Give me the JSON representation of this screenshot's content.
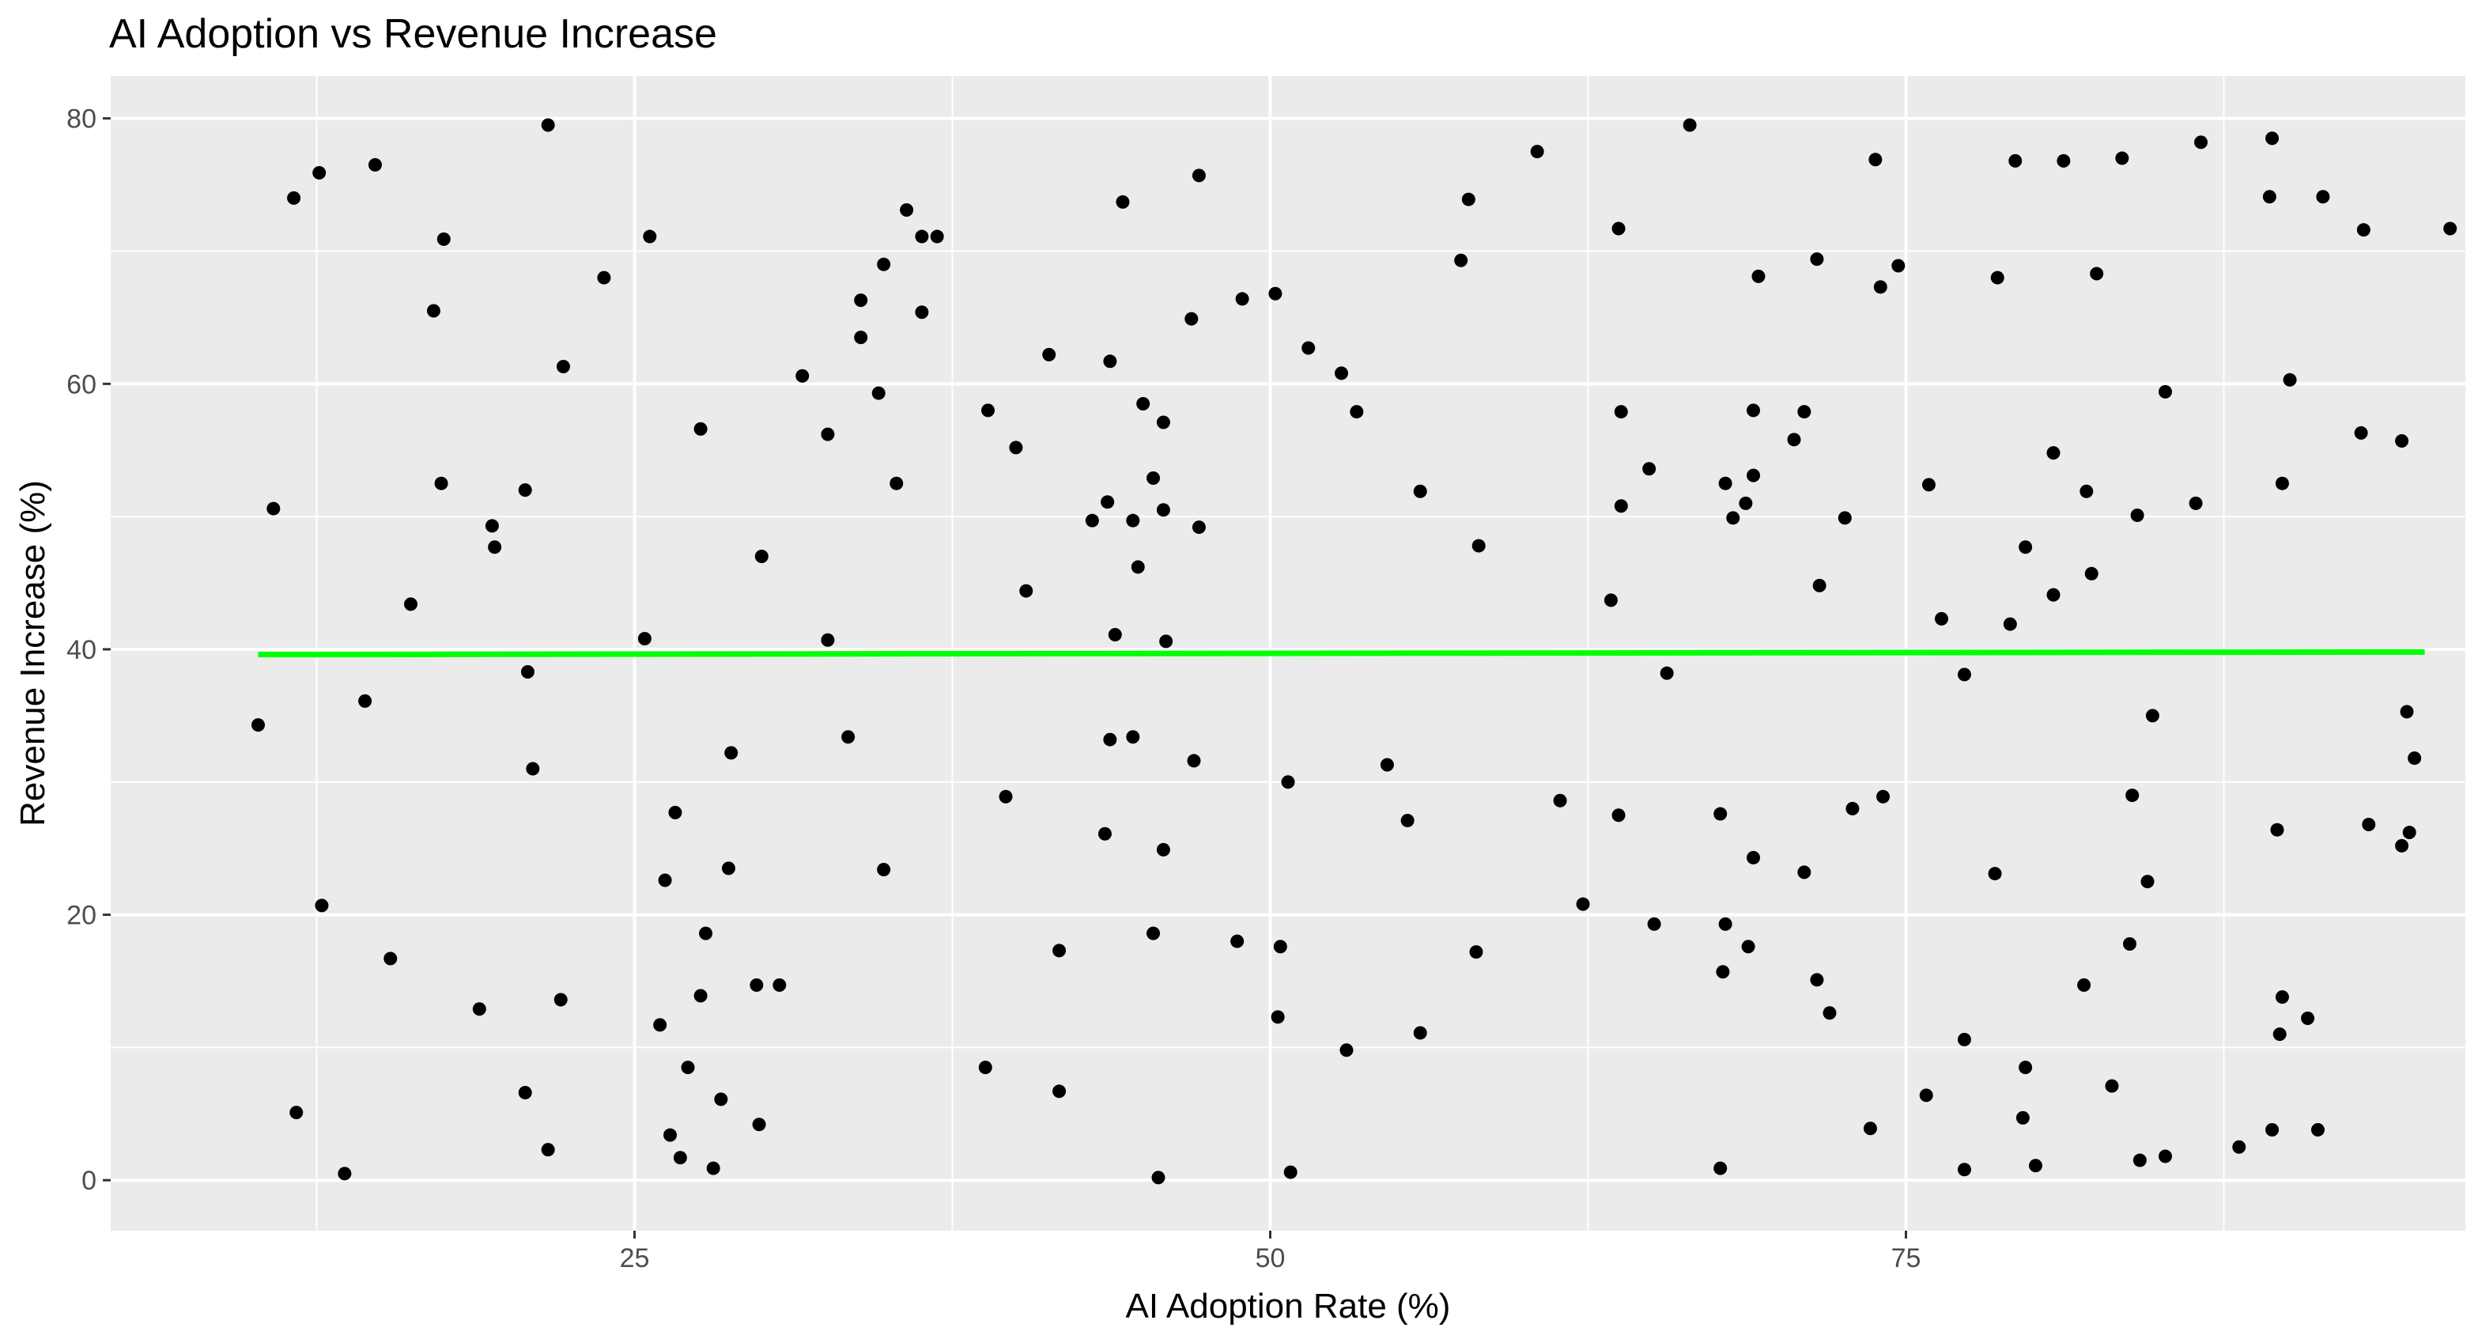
{
  "chart_data": {
    "type": "scatter",
    "title": "AI Adoption vs Revenue Increase",
    "xlabel": "AI Adoption Rate (%)",
    "ylabel": "Revenue Increase (%)",
    "xlim": [
      4.4,
      97.0
    ],
    "ylim": [
      -3.8,
      83.2
    ],
    "x_ticks": [
      25,
      50,
      75
    ],
    "y_ticks": [
      0,
      20,
      40,
      60,
      80
    ],
    "grid": true,
    "colors": {
      "panel": "#ebebeb",
      "grid": "#ffffff",
      "points": "#000000",
      "trend": "#00ff00"
    },
    "trend_line": {
      "x": [
        10.2,
        95.4
      ],
      "y": [
        39.6,
        39.8
      ]
    },
    "points": [
      [
        10.2,
        34.3
      ],
      [
        10.8,
        50.6
      ],
      [
        11.6,
        74.0
      ],
      [
        11.7,
        5.1
      ],
      [
        12.6,
        75.9
      ],
      [
        12.7,
        20.7
      ],
      [
        13.6,
        0.5
      ],
      [
        14.4,
        36.1
      ],
      [
        14.8,
        76.5
      ],
      [
        15.4,
        16.7
      ],
      [
        16.2,
        43.4
      ],
      [
        17.1,
        65.5
      ],
      [
        17.4,
        52.5
      ],
      [
        17.5,
        70.9
      ],
      [
        18.9,
        12.9
      ],
      [
        19.4,
        49.3
      ],
      [
        19.5,
        47.7
      ],
      [
        20.7,
        52.0
      ],
      [
        20.7,
        6.6
      ],
      [
        20.8,
        38.3
      ],
      [
        21.0,
        31.0
      ],
      [
        21.6,
        79.5
      ],
      [
        21.6,
        2.3
      ],
      [
        22.1,
        13.6
      ],
      [
        22.2,
        61.3
      ],
      [
        23.8,
        68.0
      ],
      [
        25.4,
        40.8
      ],
      [
        25.6,
        71.1
      ],
      [
        26.0,
        11.7
      ],
      [
        26.2,
        22.6
      ],
      [
        26.4,
        3.4
      ],
      [
        26.6,
        27.7
      ],
      [
        26.8,
        1.7
      ],
      [
        27.1,
        8.5
      ],
      [
        27.6,
        56.6
      ],
      [
        27.6,
        13.9
      ],
      [
        27.8,
        18.6
      ],
      [
        28.1,
        0.9
      ],
      [
        28.4,
        6.1
      ],
      [
        28.7,
        23.5
      ],
      [
        28.8,
        32.2
      ],
      [
        29.8,
        14.7
      ],
      [
        29.9,
        4.2
      ],
      [
        30.0,
        47.0
      ],
      [
        30.7,
        14.7
      ],
      [
        31.6,
        60.6
      ],
      [
        32.6,
        40.7
      ],
      [
        32.6,
        56.2
      ],
      [
        33.4,
        33.4
      ],
      [
        33.9,
        66.3
      ],
      [
        33.9,
        63.5
      ],
      [
        34.6,
        59.3
      ],
      [
        34.8,
        23.4
      ],
      [
        34.8,
        69.0
      ],
      [
        35.3,
        52.5
      ],
      [
        35.7,
        73.1
      ],
      [
        36.3,
        65.4
      ],
      [
        36.3,
        71.1
      ],
      [
        36.9,
        71.1
      ],
      [
        38.8,
        8.5
      ],
      [
        38.9,
        58.0
      ],
      [
        39.6,
        28.9
      ],
      [
        40.0,
        55.2
      ],
      [
        40.4,
        44.4
      ],
      [
        41.3,
        62.2
      ],
      [
        41.7,
        17.3
      ],
      [
        41.7,
        6.7
      ],
      [
        43.0,
        49.7
      ],
      [
        43.5,
        26.1
      ],
      [
        43.6,
        51.1
      ],
      [
        43.7,
        61.7
      ],
      [
        43.7,
        33.2
      ],
      [
        43.9,
        41.1
      ],
      [
        44.2,
        73.7
      ],
      [
        44.6,
        33.4
      ],
      [
        44.6,
        49.7
      ],
      [
        44.8,
        46.2
      ],
      [
        45.0,
        58.5
      ],
      [
        45.4,
        52.9
      ],
      [
        45.4,
        18.6
      ],
      [
        45.6,
        0.2
      ],
      [
        45.8,
        50.5
      ],
      [
        45.8,
        57.1
      ],
      [
        45.8,
        24.9
      ],
      [
        45.9,
        40.6
      ],
      [
        46.9,
        64.9
      ],
      [
        47.0,
        31.6
      ],
      [
        47.2,
        49.2
      ],
      [
        47.2,
        75.7
      ],
      [
        48.7,
        18.0
      ],
      [
        48.9,
        66.4
      ],
      [
        50.2,
        66.8
      ],
      [
        50.3,
        12.3
      ],
      [
        50.4,
        17.6
      ],
      [
        50.7,
        30.0
      ],
      [
        50.8,
        0.6
      ],
      [
        51.5,
        62.7
      ],
      [
        52.8,
        60.8
      ],
      [
        53.0,
        9.8
      ],
      [
        53.4,
        57.9
      ],
      [
        54.6,
        31.3
      ],
      [
        55.4,
        27.1
      ],
      [
        55.9,
        51.9
      ],
      [
        55.9,
        11.1
      ],
      [
        57.5,
        69.3
      ],
      [
        57.8,
        73.9
      ],
      [
        58.1,
        17.2
      ],
      [
        58.2,
        47.8
      ],
      [
        60.5,
        77.5
      ],
      [
        61.4,
        28.6
      ],
      [
        62.3,
        20.8
      ],
      [
        63.4,
        43.7
      ],
      [
        63.7,
        71.7
      ],
      [
        63.7,
        27.5
      ],
      [
        63.8,
        57.9
      ],
      [
        63.8,
        50.8
      ],
      [
        64.9,
        53.6
      ],
      [
        65.1,
        19.3
      ],
      [
        65.6,
        38.2
      ],
      [
        66.5,
        79.5
      ],
      [
        67.7,
        0.9
      ],
      [
        67.7,
        27.6
      ],
      [
        67.8,
        15.7
      ],
      [
        67.9,
        19.3
      ],
      [
        67.9,
        52.5
      ],
      [
        68.2,
        49.9
      ],
      [
        68.7,
        51.0
      ],
      [
        68.8,
        17.6
      ],
      [
        69.0,
        53.1
      ],
      [
        69.0,
        58.0
      ],
      [
        69.0,
        24.3
      ],
      [
        69.2,
        68.1
      ],
      [
        70.6,
        55.8
      ],
      [
        71.0,
        57.9
      ],
      [
        71.0,
        23.2
      ],
      [
        71.5,
        69.4
      ],
      [
        71.5,
        15.1
      ],
      [
        71.6,
        44.8
      ],
      [
        72.0,
        12.6
      ],
      [
        72.6,
        49.9
      ],
      [
        72.9,
        28.0
      ],
      [
        73.6,
        3.9
      ],
      [
        73.8,
        76.9
      ],
      [
        74.0,
        67.3
      ],
      [
        74.1,
        28.9
      ],
      [
        74.7,
        68.9
      ],
      [
        75.8,
        6.4
      ],
      [
        75.9,
        52.4
      ],
      [
        76.4,
        42.3
      ],
      [
        77.3,
        38.1
      ],
      [
        77.3,
        0.8
      ],
      [
        77.3,
        10.6
      ],
      [
        78.5,
        23.1
      ],
      [
        78.6,
        68.0
      ],
      [
        79.1,
        41.9
      ],
      [
        79.3,
        76.8
      ],
      [
        79.6,
        4.7
      ],
      [
        79.7,
        8.5
      ],
      [
        79.7,
        47.7
      ],
      [
        80.1,
        1.1
      ],
      [
        80.8,
        44.1
      ],
      [
        80.8,
        54.8
      ],
      [
        81.2,
        76.8
      ],
      [
        82.0,
        14.7
      ],
      [
        82.1,
        51.9
      ],
      [
        82.3,
        45.7
      ],
      [
        82.5,
        68.3
      ],
      [
        83.1,
        7.1
      ],
      [
        83.5,
        77.0
      ],
      [
        83.8,
        17.8
      ],
      [
        83.9,
        29.0
      ],
      [
        84.1,
        50.1
      ],
      [
        84.2,
        1.5
      ],
      [
        84.5,
        22.5
      ],
      [
        84.7,
        35.0
      ],
      [
        85.2,
        59.4
      ],
      [
        85.2,
        1.8
      ],
      [
        86.4,
        51.0
      ],
      [
        86.6,
        78.2
      ],
      [
        88.1,
        2.5
      ],
      [
        89.4,
        3.8
      ],
      [
        89.4,
        78.5
      ],
      [
        89.3,
        74.1
      ],
      [
        89.6,
        26.4
      ],
      [
        89.7,
        11.0
      ],
      [
        89.8,
        13.8
      ],
      [
        89.8,
        52.5
      ],
      [
        90.1,
        60.3
      ],
      [
        90.8,
        12.2
      ],
      [
        91.2,
        3.8
      ],
      [
        91.4,
        74.1
      ],
      [
        93.0,
        71.6
      ],
      [
        92.9,
        56.3
      ],
      [
        93.2,
        26.8
      ],
      [
        94.5,
        25.2
      ],
      [
        94.5,
        55.7
      ],
      [
        94.7,
        35.3
      ],
      [
        94.8,
        26.2
      ],
      [
        95.0,
        31.8
      ],
      [
        96.4,
        71.7
      ]
    ]
  }
}
